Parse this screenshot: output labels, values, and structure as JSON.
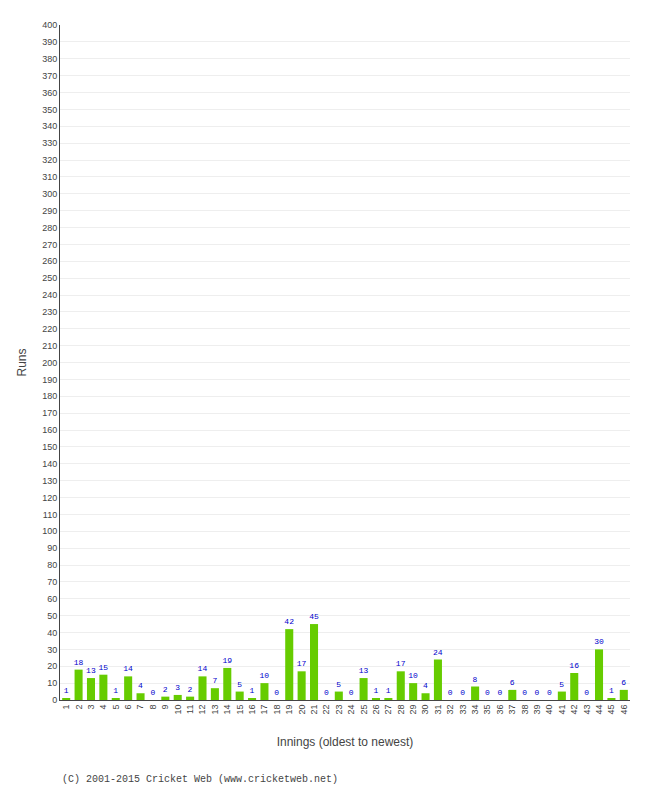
{
  "chart_data": {
    "type": "bar",
    "categories": [
      "1",
      "2",
      "3",
      "4",
      "5",
      "6",
      "7",
      "8",
      "9",
      "10",
      "11",
      "12",
      "13",
      "14",
      "15",
      "16",
      "17",
      "18",
      "19",
      "20",
      "21",
      "22",
      "23",
      "24",
      "25",
      "26",
      "27",
      "28",
      "29",
      "30",
      "31",
      "32",
      "33",
      "34",
      "35",
      "36",
      "37",
      "38",
      "39",
      "40",
      "41",
      "42",
      "43",
      "44",
      "45",
      "46"
    ],
    "values": [
      1,
      18,
      13,
      15,
      1,
      14,
      4,
      0,
      2,
      3,
      2,
      14,
      7,
      19,
      5,
      1,
      10,
      0,
      42,
      17,
      45,
      0,
      5,
      0,
      13,
      1,
      1,
      17,
      10,
      4,
      24,
      0,
      0,
      8,
      0,
      0,
      6,
      0,
      0,
      0,
      5,
      16,
      0,
      30,
      1,
      6
    ],
    "color": "#66cc00",
    "xlabel": "Innings (oldest to newest)",
    "ylabel": "Runs",
    "ylim": [
      0,
      400
    ],
    "yticks": [
      0,
      10,
      20,
      30,
      40,
      50,
      60,
      70,
      80,
      90,
      100,
      110,
      120,
      130,
      140,
      150,
      160,
      170,
      180,
      190,
      200,
      210,
      220,
      230,
      240,
      250,
      260,
      270,
      280,
      290,
      300,
      310,
      320,
      330,
      340,
      350,
      360,
      370,
      380,
      390,
      400
    ],
    "grid": true,
    "data_labels": true,
    "annotations": [
      "(C) 2001-2015 Cricket Web (www.cricketweb.net)"
    ]
  }
}
